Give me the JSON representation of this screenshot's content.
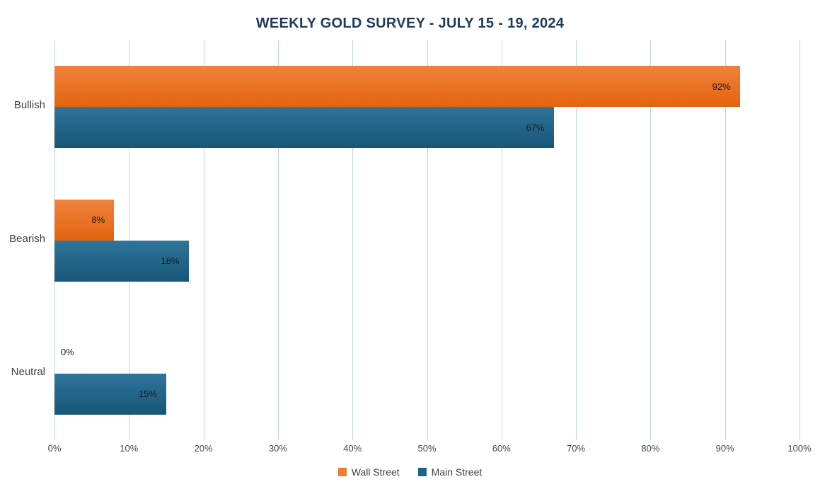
{
  "chart_data": {
    "type": "bar",
    "orientation": "horizontal",
    "title": "WEEKLY GOLD SURVEY - JULY 15 - 19, 2024",
    "categories": [
      "Bullish",
      "Bearish",
      "Neutral"
    ],
    "series": [
      {
        "name": "Wall Street",
        "values": [
          92,
          8,
          0
        ],
        "color_top": "#F0823B",
        "color_bottom": "#E2640F",
        "legend_color": "#ED7D31"
      },
      {
        "name": "Main Street",
        "values": [
          67,
          18,
          15
        ],
        "color_top": "#2F749C",
        "color_bottom": "#175676",
        "legend_color": "#1F6487"
      }
    ],
    "value_suffix": "%",
    "xlim": [
      0,
      100
    ],
    "x_ticks": [
      "0%",
      "10%",
      "20%",
      "30%",
      "40%",
      "50%",
      "60%",
      "70%",
      "80%",
      "90%",
      "100%"
    ],
    "grid": true,
    "gridline_color": "#BDD4E8",
    "title_color": "#1E3A5C",
    "legend_position": "bottom"
  }
}
